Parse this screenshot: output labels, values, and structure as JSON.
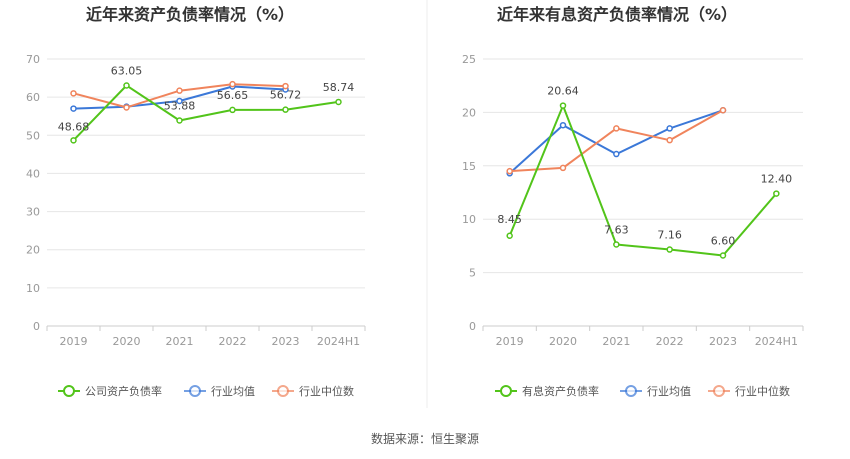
{
  "chart_data": [
    {
      "type": "line",
      "title": "近年来资产负债率情况（%）",
      "categories": [
        "2019",
        "2020",
        "2021",
        "2022",
        "2023",
        "2024H1"
      ],
      "ylim": [
        0,
        70
      ],
      "yticks": [
        0,
        10,
        20,
        30,
        40,
        50,
        60,
        70
      ],
      "grid": true,
      "legend_position": "bottom",
      "series": [
        {
          "name": "公司资产负债率",
          "color": "#52c41a",
          "values": [
            48.68,
            63.05,
            53.88,
            56.65,
            56.72,
            58.74
          ],
          "labels": [
            "48.68",
            "63.05",
            "53.88",
            "56.65",
            "56.72",
            "58.74"
          ]
        },
        {
          "name": "行业均值",
          "color": "#3b78d8",
          "values": [
            57.0,
            57.5,
            59.0,
            62.8,
            62.0,
            null
          ],
          "labels": []
        },
        {
          "name": "行业中位数",
          "color": "#f0845c",
          "values": [
            61.0,
            57.3,
            61.7,
            63.4,
            62.9,
            null
          ],
          "labels": []
        }
      ]
    },
    {
      "type": "line",
      "title": "近年来有息资产负债率情况（%）",
      "categories": [
        "2019",
        "2020",
        "2021",
        "2022",
        "2023",
        "2024H1"
      ],
      "ylim": [
        0,
        25
      ],
      "yticks": [
        0,
        5,
        10,
        15,
        20,
        25
      ],
      "grid": true,
      "legend_position": "bottom",
      "series": [
        {
          "name": "有息资产负债率",
          "color": "#52c41a",
          "values": [
            8.45,
            20.64,
            7.63,
            7.16,
            6.6,
            12.4
          ],
          "labels": [
            "8.45",
            "20.64",
            "7.63",
            "7.16",
            "6.60",
            "12.40"
          ]
        },
        {
          "name": "行业均值",
          "color": "#3b78d8",
          "values": [
            14.3,
            18.8,
            16.1,
            18.5,
            20.2,
            null
          ],
          "labels": []
        },
        {
          "name": "行业中位数",
          "color": "#f0845c",
          "values": [
            14.5,
            14.8,
            18.5,
            17.4,
            20.2,
            null
          ],
          "labels": []
        }
      ]
    }
  ],
  "footer": {
    "source": "数据来源：恒生聚源"
  }
}
